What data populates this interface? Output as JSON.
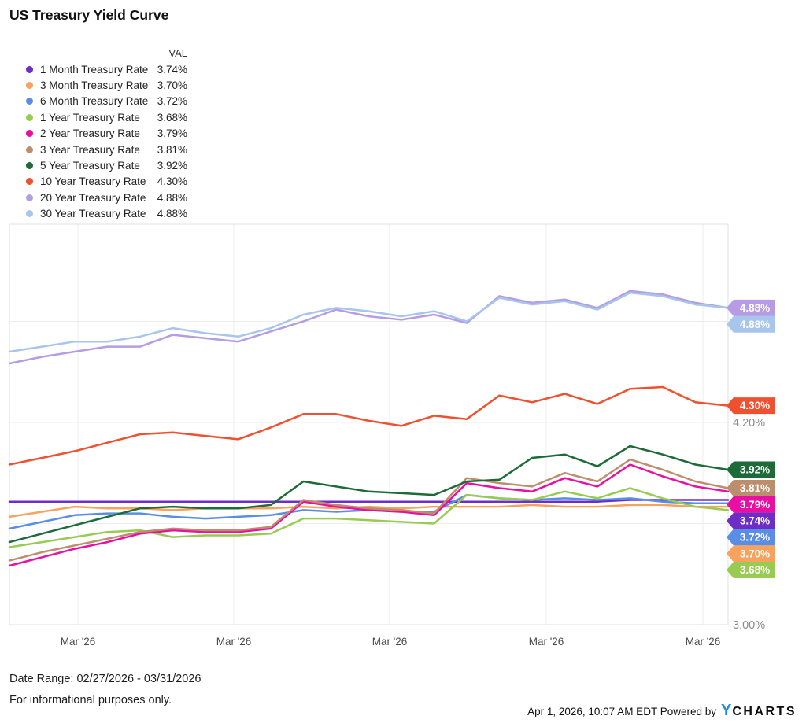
{
  "title": "US Treasury Yield Curve",
  "legend": {
    "val_header": "VAL"
  },
  "chart_data": {
    "type": "line",
    "x_tick_labels": [
      "Mar '26",
      "Mar '26",
      "Mar '26",
      "Mar '26",
      "Mar '26"
    ],
    "y_axis": {
      "unit": "%",
      "range": [
        3.0,
        5.38
      ],
      "gridline_values": [
        3.6,
        4.2,
        4.8
      ],
      "visible_tick_labels": [
        {
          "label": "4.20%",
          "value": 4.2
        },
        {
          "label": "3.00%",
          "value": 3.0
        }
      ]
    },
    "grid": true,
    "legend_position": "top-left",
    "series": [
      {
        "name": "1 Month Treasury Rate",
        "end_label": "3.74%",
        "color": "#6c2ec6",
        "values": [
          3.73,
          3.73,
          3.73,
          3.73,
          3.73,
          3.73,
          3.73,
          3.73,
          3.73,
          3.73,
          3.73,
          3.73,
          3.73,
          3.73,
          3.73,
          3.73,
          3.73,
          3.73,
          3.73,
          3.74,
          3.74,
          3.74,
          3.74
        ]
      },
      {
        "name": "3 Month Treasury Rate",
        "end_label": "3.70%",
        "color": "#f7a25f",
        "values": [
          3.64,
          3.67,
          3.7,
          3.69,
          3.69,
          3.68,
          3.69,
          3.69,
          3.69,
          3.7,
          3.69,
          3.7,
          3.69,
          3.7,
          3.7,
          3.7,
          3.71,
          3.7,
          3.7,
          3.71,
          3.71,
          3.7,
          3.7
        ]
      },
      {
        "name": "6 Month Treasury Rate",
        "end_label": "3.72%",
        "color": "#5a8de4",
        "values": [
          3.57,
          3.61,
          3.65,
          3.66,
          3.66,
          3.64,
          3.63,
          3.64,
          3.65,
          3.68,
          3.67,
          3.68,
          3.67,
          3.67,
          3.77,
          3.75,
          3.74,
          3.75,
          3.74,
          3.75,
          3.73,
          3.72,
          3.72
        ]
      },
      {
        "name": "1 Year Treasury Rate",
        "end_label": "3.68%",
        "color": "#98cb52",
        "values": [
          3.46,
          3.49,
          3.52,
          3.55,
          3.56,
          3.52,
          3.53,
          3.53,
          3.54,
          3.63,
          3.63,
          3.62,
          3.61,
          3.6,
          3.77,
          3.75,
          3.74,
          3.79,
          3.75,
          3.81,
          3.75,
          3.7,
          3.68
        ]
      },
      {
        "name": "2 Year Treasury Rate",
        "end_label": "3.79%",
        "color": "#e90fa4",
        "values": [
          3.35,
          3.4,
          3.45,
          3.49,
          3.54,
          3.56,
          3.55,
          3.55,
          3.57,
          3.73,
          3.7,
          3.68,
          3.67,
          3.65,
          3.84,
          3.81,
          3.79,
          3.87,
          3.82,
          3.95,
          3.88,
          3.82,
          3.79
        ]
      },
      {
        "name": "3 Year Treasury Rate",
        "end_label": "3.81%",
        "color": "#bd8e6d",
        "values": [
          3.38,
          3.43,
          3.47,
          3.51,
          3.55,
          3.57,
          3.56,
          3.56,
          3.58,
          3.74,
          3.71,
          3.69,
          3.68,
          3.66,
          3.87,
          3.84,
          3.82,
          3.9,
          3.85,
          3.98,
          3.92,
          3.85,
          3.81
        ]
      },
      {
        "name": "5 Year Treasury Rate",
        "end_label": "3.92%",
        "color": "#1d6b38",
        "values": [
          3.49,
          3.54,
          3.59,
          3.64,
          3.69,
          3.7,
          3.69,
          3.69,
          3.71,
          3.85,
          3.82,
          3.79,
          3.78,
          3.77,
          3.85,
          3.86,
          3.99,
          4.01,
          3.94,
          4.06,
          4.01,
          3.95,
          3.92
        ]
      },
      {
        "name": "10 Year Treasury Rate",
        "end_label": "4.30%",
        "color": "#ef5030",
        "values": [
          3.95,
          3.99,
          4.03,
          4.08,
          4.13,
          4.14,
          4.12,
          4.1,
          4.17,
          4.25,
          4.25,
          4.21,
          4.18,
          4.24,
          4.22,
          4.36,
          4.32,
          4.37,
          4.31,
          4.4,
          4.41,
          4.32,
          4.3
        ]
      },
      {
        "name": "20 Year Treasury Rate",
        "end_label": "4.88%",
        "color": "#b59ce4",
        "values": [
          4.55,
          4.59,
          4.62,
          4.65,
          4.65,
          4.72,
          4.7,
          4.68,
          4.74,
          4.8,
          4.87,
          4.83,
          4.81,
          4.84,
          4.79,
          4.95,
          4.91,
          4.93,
          4.88,
          4.98,
          4.96,
          4.91,
          4.88
        ]
      },
      {
        "name": "30 Year Treasury Rate",
        "end_label": "4.88%",
        "color": "#a8c5ec",
        "values": [
          4.62,
          4.65,
          4.68,
          4.68,
          4.71,
          4.76,
          4.73,
          4.71,
          4.76,
          4.84,
          4.88,
          4.86,
          4.83,
          4.86,
          4.8,
          4.94,
          4.9,
          4.92,
          4.87,
          4.97,
          4.95,
          4.9,
          4.88
        ]
      }
    ]
  },
  "footer": {
    "date_range": "Date Range: 02/27/2026 - 03/31/2026",
    "disclaimer": "For informational purposes only.",
    "timestamp_powered": "Apr 1, 2026, 10:07 AM EDT Powered by",
    "logo_y": "Y",
    "logo_rest": "CHARTS",
    "logo_color": "#1e8bea"
  }
}
